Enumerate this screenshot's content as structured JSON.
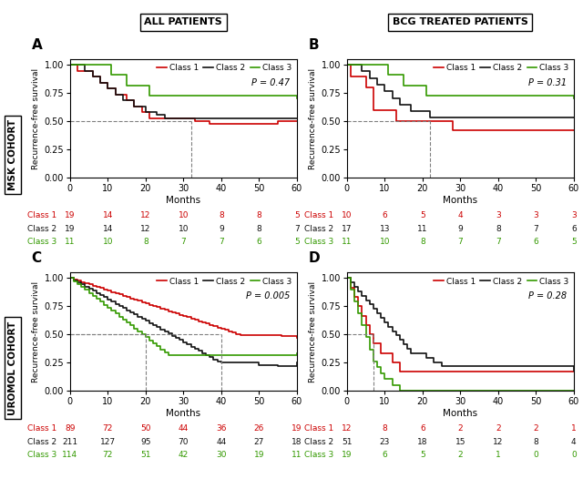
{
  "chart_data": [
    {
      "type": "step",
      "panel_label": "A",
      "title": "ALL PATIENTS",
      "row_title": "MSK COHORT",
      "xlabel": "Months",
      "ylabel": "Recurrence-free survival",
      "xlim": [
        0,
        60
      ],
      "ylim": [
        0.0,
        1.05
      ],
      "xticks": [
        0,
        10,
        20,
        30,
        40,
        50,
        60
      ],
      "yticks": [
        {
          "value": 0.0,
          "label": "0.00"
        },
        {
          "value": 0.25,
          "label": "0.25"
        },
        {
          "value": 0.5,
          "label": "0.50"
        },
        {
          "value": 0.75,
          "label": "0.75"
        },
        {
          "value": 1.0,
          "label": "1.00"
        }
      ],
      "legend": "upper right",
      "annotations": [
        "P = 0.47"
      ],
      "reference_lines": {
        "x": [
          32
        ],
        "y": 0.5,
        "line_style": "dashed"
      },
      "series": [
        {
          "name": "Class 1",
          "color": "#cc0000",
          "x": [
            0,
            2,
            6,
            8,
            10,
            12,
            15,
            17,
            19,
            21,
            23,
            33,
            37,
            40,
            44,
            48,
            55,
            60
          ],
          "values": [
            1.0,
            0.947,
            0.895,
            0.842,
            0.789,
            0.737,
            0.684,
            0.632,
            0.579,
            0.526,
            0.526,
            0.5,
            0.474,
            0.474,
            0.474,
            0.474,
            0.5,
            0.5
          ]
        },
        {
          "name": "Class 2",
          "color": "#111111",
          "x": [
            0,
            4,
            6,
            8,
            10,
            12,
            14,
            17,
            20,
            23,
            25,
            28,
            31,
            60
          ],
          "values": [
            1.0,
            0.947,
            0.895,
            0.842,
            0.789,
            0.737,
            0.684,
            0.632,
            0.579,
            0.553,
            0.526,
            0.526,
            0.526,
            0.526
          ]
        },
        {
          "name": "Class 3",
          "color": "#339900",
          "x": [
            0,
            11,
            15,
            21,
            60
          ],
          "values": [
            1.0,
            0.909,
            0.818,
            0.727,
            0.7
          ]
        }
      ],
      "at_risk": {
        "times": [
          0,
          10,
          20,
          30,
          40,
          50,
          60
        ],
        "counts": [
          [
            19,
            14,
            12,
            10,
            8,
            8,
            5
          ],
          [
            19,
            14,
            12,
            10,
            9,
            8,
            7
          ],
          [
            11,
            10,
            8,
            7,
            7,
            6,
            5
          ]
        ]
      }
    },
    {
      "type": "step",
      "panel_label": "B",
      "title": "BCG TREATED PATIENTS",
      "xlabel": "Months",
      "ylabel": "Recurrence-free survival",
      "xlim": [
        0,
        60
      ],
      "ylim": [
        0.0,
        1.05
      ],
      "xticks": [
        0,
        10,
        20,
        30,
        40,
        50,
        60
      ],
      "yticks": [
        {
          "value": 0.0,
          "label": "0.00"
        },
        {
          "value": 0.25,
          "label": "0.25"
        },
        {
          "value": 0.5,
          "label": "0.50"
        },
        {
          "value": 0.75,
          "label": "0.75"
        },
        {
          "value": 1.0,
          "label": "1.00"
        }
      ],
      "legend": "upper right",
      "annotations": [
        "P = 0.31"
      ],
      "reference_lines": {
        "x": [
          22
        ],
        "y": 0.5,
        "line_style": "dashed"
      },
      "series": [
        {
          "name": "Class 1",
          "color": "#cc0000",
          "x": [
            0,
            1,
            5,
            7,
            13,
            22,
            28,
            60
          ],
          "values": [
            1.0,
            0.9,
            0.8,
            0.6,
            0.5,
            0.5,
            0.417,
            0.417
          ]
        },
        {
          "name": "Class 2",
          "color": "#111111",
          "x": [
            0,
            4,
            6,
            8,
            10,
            12,
            14,
            17,
            22,
            27,
            60
          ],
          "values": [
            1.0,
            0.941,
            0.882,
            0.824,
            0.765,
            0.706,
            0.647,
            0.588,
            0.529,
            0.529,
            0.529
          ]
        },
        {
          "name": "Class 3",
          "color": "#339900",
          "x": [
            0,
            11,
            15,
            21,
            60
          ],
          "values": [
            1.0,
            0.909,
            0.818,
            0.727,
            0.7
          ]
        }
      ],
      "at_risk": {
        "times": [
          0,
          10,
          20,
          30,
          40,
          50,
          60
        ],
        "counts": [
          [
            10,
            6,
            5,
            4,
            3,
            3,
            3
          ],
          [
            17,
            13,
            11,
            9,
            8,
            7,
            6
          ],
          [
            11,
            10,
            8,
            7,
            7,
            6,
            5
          ]
        ]
      }
    },
    {
      "type": "step",
      "panel_label": "C",
      "row_title": "UROMOL COHORT",
      "xlabel": "Months",
      "ylabel": "Recurrence-free survival",
      "xlim": [
        0,
        60
      ],
      "ylim": [
        0.0,
        1.05
      ],
      "xticks": [
        0,
        10,
        20,
        30,
        40,
        50,
        60
      ],
      "yticks": [
        {
          "value": 0.0,
          "label": "0.00"
        },
        {
          "value": 0.25,
          "label": "0.25"
        },
        {
          "value": 0.5,
          "label": "0.50"
        },
        {
          "value": 0.75,
          "label": "0.75"
        },
        {
          "value": 1.0,
          "label": "1.00"
        }
      ],
      "legend": "upper right",
      "annotations": [
        "P = 0.005"
      ],
      "reference_lines": {
        "x": [
          20,
          40
        ],
        "y": 0.5,
        "line_style": "dashed"
      },
      "series": [
        {
          "name": "Class 1",
          "color": "#cc0000",
          "x": [
            0,
            1,
            2,
            3,
            4,
            5,
            6,
            7,
            8,
            9,
            10,
            11,
            12,
            13,
            14,
            15,
            16,
            17,
            18,
            19,
            20,
            21,
            22,
            23,
            24,
            25,
            26,
            27,
            28,
            29,
            30,
            31,
            32,
            33,
            34,
            35,
            36,
            37,
            38,
            39,
            40,
            41,
            42,
            43,
            44,
            45,
            55,
            56,
            60
          ],
          "values": [
            1.0,
            0.989,
            0.978,
            0.966,
            0.955,
            0.944,
            0.933,
            0.921,
            0.91,
            0.899,
            0.888,
            0.876,
            0.865,
            0.854,
            0.843,
            0.831,
            0.82,
            0.809,
            0.798,
            0.786,
            0.775,
            0.764,
            0.752,
            0.741,
            0.73,
            0.719,
            0.707,
            0.696,
            0.685,
            0.674,
            0.662,
            0.651,
            0.64,
            0.629,
            0.617,
            0.606,
            0.595,
            0.584,
            0.572,
            0.561,
            0.55,
            0.539,
            0.527,
            0.516,
            0.505,
            0.494,
            0.494,
            0.483,
            0.472
          ]
        },
        {
          "name": "Class 2",
          "color": "#111111",
          "x": [
            0,
            1,
            2,
            3,
            4,
            5,
            6,
            7,
            8,
            9,
            10,
            11,
            12,
            13,
            14,
            15,
            16,
            17,
            18,
            19,
            20,
            21,
            22,
            23,
            24,
            25,
            26,
            27,
            28,
            29,
            30,
            31,
            32,
            33,
            34,
            35,
            36,
            37,
            38,
            39,
            40,
            50,
            55,
            60
          ],
          "values": [
            1.0,
            0.981,
            0.962,
            0.943,
            0.924,
            0.905,
            0.886,
            0.867,
            0.848,
            0.829,
            0.81,
            0.791,
            0.772,
            0.753,
            0.734,
            0.715,
            0.696,
            0.677,
            0.658,
            0.639,
            0.62,
            0.601,
            0.582,
            0.563,
            0.544,
            0.525,
            0.506,
            0.487,
            0.468,
            0.449,
            0.43,
            0.411,
            0.392,
            0.373,
            0.354,
            0.335,
            0.316,
            0.297,
            0.278,
            0.259,
            0.25,
            0.23,
            0.22,
            0.25
          ]
        },
        {
          "name": "Class 3",
          "color": "#339900",
          "x": [
            0,
            1,
            2,
            3,
            4,
            5,
            6,
            7,
            8,
            9,
            10,
            11,
            12,
            13,
            14,
            15,
            16,
            17,
            18,
            19,
            20,
            21,
            22,
            23,
            24,
            25,
            26,
            27,
            28,
            60
          ],
          "values": [
            1.0,
            0.974,
            0.947,
            0.921,
            0.895,
            0.868,
            0.842,
            0.816,
            0.789,
            0.763,
            0.737,
            0.711,
            0.684,
            0.658,
            0.632,
            0.605,
            0.579,
            0.553,
            0.526,
            0.5,
            0.474,
            0.447,
            0.421,
            0.395,
            0.368,
            0.342,
            0.316,
            0.316,
            0.316,
            0.33
          ]
        }
      ],
      "at_risk": {
        "times": [
          0,
          10,
          20,
          30,
          40,
          50,
          60
        ],
        "counts": [
          [
            89,
            72,
            50,
            44,
            36,
            26,
            19
          ],
          [
            211,
            127,
            95,
            70,
            44,
            27,
            18
          ],
          [
            114,
            72,
            51,
            42,
            30,
            19,
            11
          ]
        ]
      }
    },
    {
      "type": "step",
      "panel_label": "D",
      "xlabel": "Months",
      "ylabel": "Recurrence-free survival",
      "xlim": [
        0,
        60
      ],
      "ylim": [
        0.0,
        1.05
      ],
      "xticks": [
        0,
        10,
        20,
        30,
        40,
        50,
        60
      ],
      "yticks": [
        {
          "value": 0.0,
          "label": "0.00"
        },
        {
          "value": 0.25,
          "label": "0.25"
        },
        {
          "value": 0.5,
          "label": "0.50"
        },
        {
          "value": 0.75,
          "label": "0.75"
        },
        {
          "value": 1.0,
          "label": "1.00"
        }
      ],
      "legend": "upper right",
      "annotations": [
        "P = 0.28"
      ],
      "reference_lines": {
        "x": [
          7
        ],
        "y": 0.5,
        "line_style": "dashed"
      },
      "series": [
        {
          "name": "Class 1",
          "color": "#cc0000",
          "x": [
            0,
            1,
            2,
            3,
            4,
            5,
            6,
            7,
            9,
            12,
            14,
            60
          ],
          "values": [
            1.0,
            0.917,
            0.833,
            0.75,
            0.667,
            0.583,
            0.5,
            0.417,
            0.333,
            0.25,
            0.167,
            0.167
          ]
        },
        {
          "name": "Class 2",
          "color": "#111111",
          "x": [
            0,
            1,
            2,
            3,
            4,
            5,
            6,
            7,
            8,
            9,
            10,
            11,
            12,
            13,
            14,
            15,
            16,
            17,
            21,
            23,
            25,
            60
          ],
          "values": [
            1.0,
            0.961,
            0.922,
            0.882,
            0.843,
            0.804,
            0.765,
            0.725,
            0.686,
            0.647,
            0.608,
            0.569,
            0.529,
            0.49,
            0.451,
            0.412,
            0.373,
            0.333,
            0.294,
            0.255,
            0.216,
            0.176
          ]
        },
        {
          "name": "Class 3",
          "color": "#339900",
          "x": [
            0,
            1,
            2,
            3,
            4,
            5,
            6,
            7,
            8,
            9,
            10,
            12,
            14,
            15,
            60
          ],
          "values": [
            1.0,
            0.895,
            0.789,
            0.684,
            0.579,
            0.474,
            0.368,
            0.263,
            0.211,
            0.158,
            0.105,
            0.053,
            0.0,
            0.0,
            0.0
          ]
        }
      ],
      "at_risk": {
        "times": [
          0,
          10,
          20,
          30,
          40,
          50,
          60
        ],
        "counts": [
          [
            12,
            8,
            6,
            2,
            2,
            2,
            1
          ],
          [
            51,
            23,
            18,
            15,
            12,
            8,
            4
          ],
          [
            19,
            6,
            5,
            2,
            1,
            0,
            0
          ]
        ]
      }
    }
  ]
}
